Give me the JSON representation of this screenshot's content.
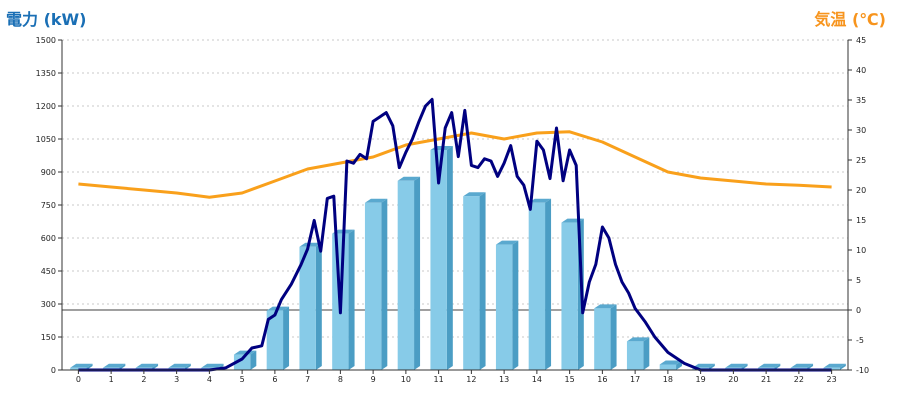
{
  "chart_data": {
    "type": "bar+line",
    "left_axis_label": "電力 (kW)",
    "right_axis_label": "気温 (℃)",
    "left_ticks": [
      "0",
      "150",
      "300",
      "450",
      "600",
      "750",
      "900",
      "1050",
      "1200",
      "1350",
      "1500"
    ],
    "right_ticks": [
      "-10",
      "-5",
      "0",
      "5",
      "10",
      "15",
      "20",
      "25",
      "30",
      "35",
      "40",
      "45"
    ],
    "x_ticks": [
      "0",
      "1",
      "2",
      "3",
      "4",
      "5",
      "6",
      "7",
      "8",
      "9",
      "10",
      "11",
      "12",
      "13",
      "14",
      "15",
      "16",
      "17",
      "18",
      "19",
      "20",
      "21",
      "22",
      "23"
    ],
    "ylim_left": [
      0,
      1500
    ],
    "ylim_right": [
      -10,
      45
    ],
    "grid": true,
    "colors": {
      "bar": "#87cbe8",
      "bar_dark": "#4b9dc4",
      "power_line": "#000080",
      "temp_line": "#f9a01b",
      "left_title": "#1a6fb5",
      "right_title": "#f7941d"
    },
    "hourly_power": [
      10,
      10,
      10,
      10,
      10,
      70,
      270,
      560,
      620,
      760,
      860,
      1000,
      790,
      570,
      760,
      670,
      280,
      130,
      25,
      10,
      10,
      10,
      10,
      10
    ],
    "power_curve": {
      "x": [
        0,
        1,
        2,
        3,
        4,
        4.5,
        5,
        5.3,
        5.6,
        5.8,
        6,
        6.2,
        6.5,
        6.8,
        7,
        7.2,
        7.4,
        7.6,
        7.8,
        8,
        8.2,
        8.4,
        8.6,
        8.8,
        9,
        9.2,
        9.4,
        9.6,
        9.8,
        10,
        10.2,
        10.4,
        10.6,
        10.8,
        11,
        11.2,
        11.4,
        11.6,
        11.8,
        12,
        12.2,
        12.4,
        12.6,
        12.8,
        13,
        13.2,
        13.4,
        13.6,
        13.8,
        14,
        14.2,
        14.4,
        14.6,
        14.8,
        15,
        15.2,
        15.4,
        15.6,
        15.8,
        16,
        16.2,
        16.4,
        16.6,
        16.8,
        17,
        17.3,
        17.6,
        18,
        18.5,
        19,
        20,
        21,
        22,
        23
      ],
      "y": [
        0,
        0,
        0,
        0,
        0,
        10,
        50,
        100,
        110,
        230,
        250,
        320,
        390,
        480,
        550,
        680,
        540,
        780,
        790,
        260,
        950,
        940,
        980,
        960,
        1130,
        1150,
        1170,
        1110,
        920,
        990,
        1050,
        1130,
        1200,
        1230,
        850,
        1100,
        1170,
        970,
        1180,
        930,
        920,
        960,
        950,
        880,
        940,
        1020,
        880,
        840,
        730,
        1040,
        1000,
        870,
        1100,
        860,
        1000,
        930,
        260,
        400,
        480,
        650,
        600,
        480,
        400,
        350,
        280,
        220,
        150,
        80,
        30,
        0,
        0,
        0,
        0,
        0
      ]
    },
    "temperature_curve": {
      "x": [
        0,
        1,
        2,
        3,
        4,
        5,
        6,
        7,
        8,
        9,
        10,
        11,
        12,
        13,
        14,
        15,
        16,
        17,
        18,
        19,
        20,
        21,
        22,
        23
      ],
      "y": [
        21,
        20.5,
        20,
        19.5,
        18.8,
        19.5,
        21.5,
        23.5,
        24.5,
        25.5,
        27.5,
        28.5,
        29.5,
        28.5,
        29.5,
        29.7,
        28,
        25.5,
        23,
        22,
        21.5,
        21,
        20.8,
        20.5
      ]
    }
  }
}
